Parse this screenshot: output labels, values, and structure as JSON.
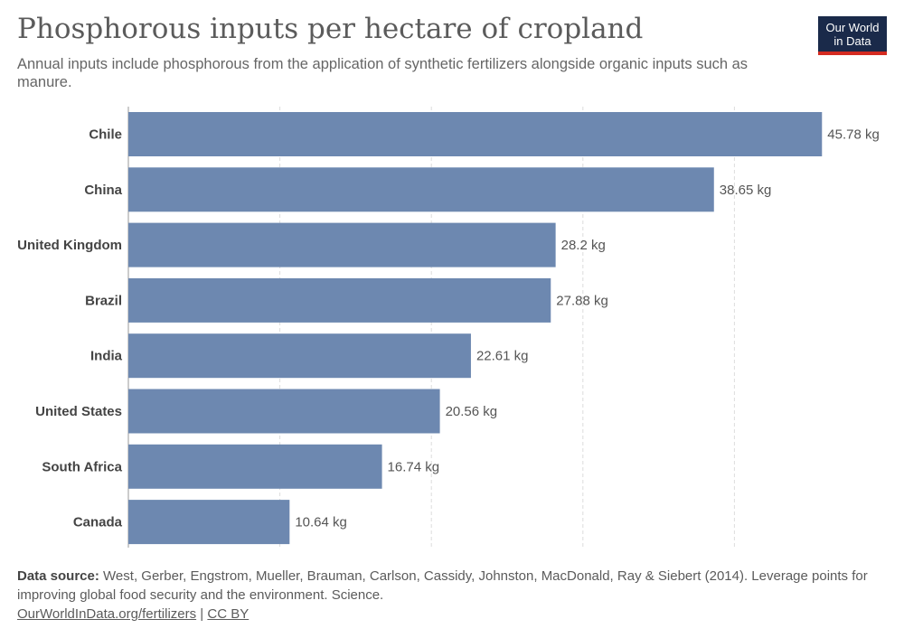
{
  "title": "Phosphorous inputs per hectare of cropland",
  "subtitle": "Annual inputs include phosphorous from the application of synthetic fertilizers alongside organic inputs such as manure.",
  "logo": {
    "line1": "Our World",
    "line2": "in Data"
  },
  "footer": {
    "source_label": "Data source:",
    "source_text": "West, Gerber, Engstrom, Mueller, Brauman, Carlson, Cassidy, Johnston, MacDonald, Ray & Siebert (2014). Leverage points for improving global food security and the environment. Science.",
    "link": "OurWorldInData.org/fertilizers",
    "separator": "|",
    "license": "CC BY"
  },
  "colors": {
    "bar": "#6d88b0",
    "grid": "#dddddd",
    "axis": "#999999"
  },
  "chart_data": {
    "type": "bar",
    "orientation": "horizontal",
    "categories": [
      "Chile",
      "China",
      "United Kingdom",
      "Brazil",
      "India",
      "United States",
      "South Africa",
      "Canada"
    ],
    "values": [
      45.78,
      38.65,
      28.2,
      27.88,
      22.61,
      20.56,
      16.74,
      10.64
    ],
    "value_labels": [
      "45.78 kg",
      "38.65 kg",
      "28.2 kg",
      "27.88 kg",
      "22.61 kg",
      "20.56 kg",
      "16.74 kg",
      "10.64 kg"
    ],
    "unit": "kg",
    "xlim": [
      0,
      46
    ],
    "gridlines": [
      10,
      20,
      30,
      40
    ],
    "grid": true,
    "legend": false
  }
}
